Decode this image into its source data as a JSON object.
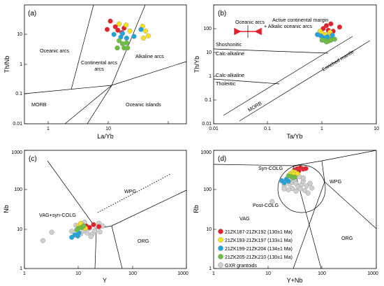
{
  "colors": {
    "red": "#e8202a",
    "yellow": "#f5e11e",
    "blue": "#1fa3df",
    "green": "#6cbf3c",
    "gray": "#cfcfcf"
  },
  "chart_data": [
    {
      "type": "scatter",
      "panel_label": "(a)",
      "xlabel": "La/Yb",
      "ylabel": "Th/Nb",
      "xscale": "log",
      "yscale": "log",
      "xlim": [
        0.4,
        40
      ],
      "ylim": [
        0.01,
        10
      ],
      "xticks": [
        "1",
        "10"
      ],
      "yticks": [
        "0.01",
        "0.1",
        "1",
        "10"
      ],
      "field_labels": [
        "Oceanic arcs",
        "Continental arcs",
        "Alkaline arcs",
        "MORB",
        "Oceanic islands"
      ],
      "series": [
        {
          "color": "red",
          "points": [
            [
              4.6,
              3.9
            ],
            [
              5.3,
              2.8
            ],
            [
              4.2,
              2.4
            ],
            [
              5.7,
              2.3
            ],
            [
              6.4,
              2.0
            ],
            [
              6.8,
              2.6
            ]
          ]
        },
        {
          "color": "yellow",
          "points": [
            [
              5.9,
              3.3
            ],
            [
              7.2,
              3.1
            ],
            [
              11.5,
              2.9
            ],
            [
              12.5,
              2.2
            ],
            [
              13.5,
              1.65
            ],
            [
              11.8,
              1.45
            ],
            [
              8.0,
              2.2
            ]
          ]
        },
        {
          "color": "blue",
          "points": [
            [
              5.1,
              1.8
            ],
            [
              6.2,
              1.55
            ],
            [
              7.3,
              1.45
            ],
            [
              9.0,
              1.6
            ],
            [
              11.0,
              2.4
            ],
            [
              6.5,
              1.9
            ]
          ]
        },
        {
          "color": "green",
          "points": [
            [
              5.9,
              1.25
            ],
            [
              6.5,
              1.05
            ],
            [
              7.3,
              1.1
            ],
            [
              5.6,
              0.82
            ],
            [
              6.8,
              0.82
            ],
            [
              7.5,
              0.82
            ]
          ]
        }
      ]
    },
    {
      "type": "scatter",
      "panel_label": "(b)",
      "xlabel": "Ta/Yb",
      "ylabel": "Th/Yb",
      "xscale": "log",
      "yscale": "log",
      "xlim": [
        0.01,
        10
      ],
      "ylim": [
        0.01,
        100
      ],
      "xticks": [
        "0.01",
        "0.1",
        "1",
        "10"
      ],
      "yticks": [
        "0.01",
        "0.1",
        "1",
        "10",
        "100"
      ],
      "field_labels": [
        "Oceanic arcs",
        "Active continental margin",
        "+ Alkalic oceanic arcs",
        "Shoshonitic",
        "Calc-alkaline",
        "Calc-alkaline",
        "Tholeiitic",
        "Enriched mantle",
        "MORB"
      ],
      "series": [
        {
          "color": "red",
          "points": [
            [
              1.05,
              16
            ],
            [
              1.2,
              20
            ],
            [
              1.45,
              23
            ],
            [
              1.3,
              14
            ],
            [
              1.6,
              13
            ],
            [
              2.1,
              18
            ]
          ]
        },
        {
          "color": "yellow",
          "points": [
            [
              0.92,
              13
            ],
            [
              1.0,
              11
            ],
            [
              1.15,
              10
            ],
            [
              1.4,
              12
            ],
            [
              1.35,
              9
            ],
            [
              1.1,
              8
            ]
          ]
        },
        {
          "color": "blue",
          "points": [
            [
              0.82,
              10
            ],
            [
              0.95,
              9
            ],
            [
              1.05,
              7.8
            ],
            [
              1.25,
              8.4
            ],
            [
              1.55,
              9.5
            ],
            [
              1.5,
              7.2
            ]
          ]
        },
        {
          "color": "green",
          "points": [
            [
              1.0,
              6.5
            ],
            [
              1.15,
              6.3
            ],
            [
              1.3,
              6.0
            ],
            [
              1.45,
              6.5
            ],
            [
              1.7,
              7.0
            ],
            [
              1.2,
              5.7
            ]
          ]
        }
      ]
    },
    {
      "type": "scatter",
      "panel_label": "(c)",
      "xlabel": "Y",
      "ylabel": "Nb",
      "xscale": "log",
      "yscale": "log",
      "xlim": [
        1,
        1000
      ],
      "ylim": [
        1,
        1000
      ],
      "xticks": [
        "1",
        "10",
        "100",
        "1000"
      ],
      "yticks": [
        "1",
        "10",
        "100",
        "1000"
      ],
      "field_labels": [
        "WPG",
        "VAG+syn-COLG",
        "ORG"
      ],
      "series": [
        {
          "color": "gray",
          "points": [
            [
              2.2,
              5.1
            ],
            [
              3.2,
              8.3
            ],
            [
              7.5,
              8.8
            ],
            [
              9.0,
              12.5
            ],
            [
              12.5,
              9.0
            ],
            [
              14.5,
              8.0
            ],
            [
              16,
              10.5
            ],
            [
              18,
              7.5
            ],
            [
              20,
              9.0
            ],
            [
              22,
              11.5
            ],
            [
              13,
              15
            ],
            [
              24,
              14
            ],
            [
              11,
              7.5
            ],
            [
              17,
              6.5
            ],
            [
              25,
              8.5
            ],
            [
              28,
              12
            ]
          ]
        },
        {
          "color": "red",
          "points": [
            [
              14,
              12
            ],
            [
              16,
              11
            ],
            [
              19,
              13
            ],
            [
              24,
              11.5
            ]
          ]
        },
        {
          "color": "yellow",
          "points": [
            [
              10,
              12
            ],
            [
              12,
              12.5
            ],
            [
              13.5,
              10.5
            ],
            [
              11,
              14
            ]
          ]
        },
        {
          "color": "blue",
          "points": [
            [
              7.5,
              6.2
            ],
            [
              8.6,
              7.1
            ],
            [
              9.7,
              6.7
            ],
            [
              10.2,
              8.0
            ]
          ]
        },
        {
          "color": "green",
          "points": [
            [
              10,
              10.5
            ],
            [
              11.5,
              11
            ],
            [
              12.5,
              12
            ],
            [
              9.3,
              9.5
            ]
          ]
        }
      ]
    },
    {
      "type": "scatter",
      "panel_label": "(d)",
      "xlabel": "Y+Nb",
      "ylabel": "Rb",
      "xscale": "log",
      "yscale": "log",
      "xlim": [
        1,
        1000
      ],
      "ylim": [
        1,
        1000
      ],
      "xticks": [
        "1",
        "10",
        "100",
        "1000"
      ],
      "yticks": [
        "1",
        "10",
        "100",
        "1000"
      ],
      "field_labels": [
        "Syn-COLG",
        "WPG",
        "VAG",
        "Post-COLG",
        "ORG"
      ],
      "series": [
        {
          "color": "gray",
          "name": "GXR grantoids",
          "points": [
            [
              12,
              50
            ],
            [
              20,
              125
            ],
            [
              25,
              140
            ],
            [
              28,
              155
            ],
            [
              30,
              175
            ],
            [
              33,
              145
            ],
            [
              36,
              120
            ],
            [
              40,
              105
            ],
            [
              42,
              135
            ],
            [
              45,
              165
            ],
            [
              48,
              95
            ],
            [
              52,
              125
            ],
            [
              55,
              82
            ],
            [
              28,
              108
            ],
            [
              33,
              92
            ],
            [
              60,
              145
            ],
            [
              24,
              100
            ],
            [
              45,
              200
            ],
            [
              38,
              215
            ],
            [
              20,
              105
            ],
            [
              30,
              230
            ],
            [
              65,
              110
            ]
          ]
        },
        {
          "color": "red",
          "name": "21ZK187-21ZK192 (130±1 Ma)",
          "points": [
            [
              31,
              320
            ],
            [
              35,
              340
            ],
            [
              40,
              360
            ],
            [
              45,
              335
            ],
            [
              50,
              345
            ],
            [
              37,
              300
            ]
          ]
        },
        {
          "color": "yellow",
          "name": "21ZK193-21ZK197 (133±1 Ma)",
          "points": [
            [
              26,
              255
            ],
            [
              29,
              285
            ],
            [
              32,
              275
            ],
            [
              35,
              255
            ],
            [
              30,
              245
            ]
          ]
        },
        {
          "color": "blue",
          "name": "21ZK199-21ZK204 (134±1 Ma)",
          "points": [
            [
              18,
              170
            ],
            [
              20,
              150
            ],
            [
              22,
              185
            ],
            [
              24,
              165
            ]
          ]
        },
        {
          "color": "green",
          "name": "21ZK205-21ZK210 (130±1 Ma)",
          "points": [
            [
              24,
              225
            ],
            [
              27,
              215
            ],
            [
              29,
              200
            ],
            [
              31,
              210
            ]
          ]
        }
      ]
    }
  ]
}
